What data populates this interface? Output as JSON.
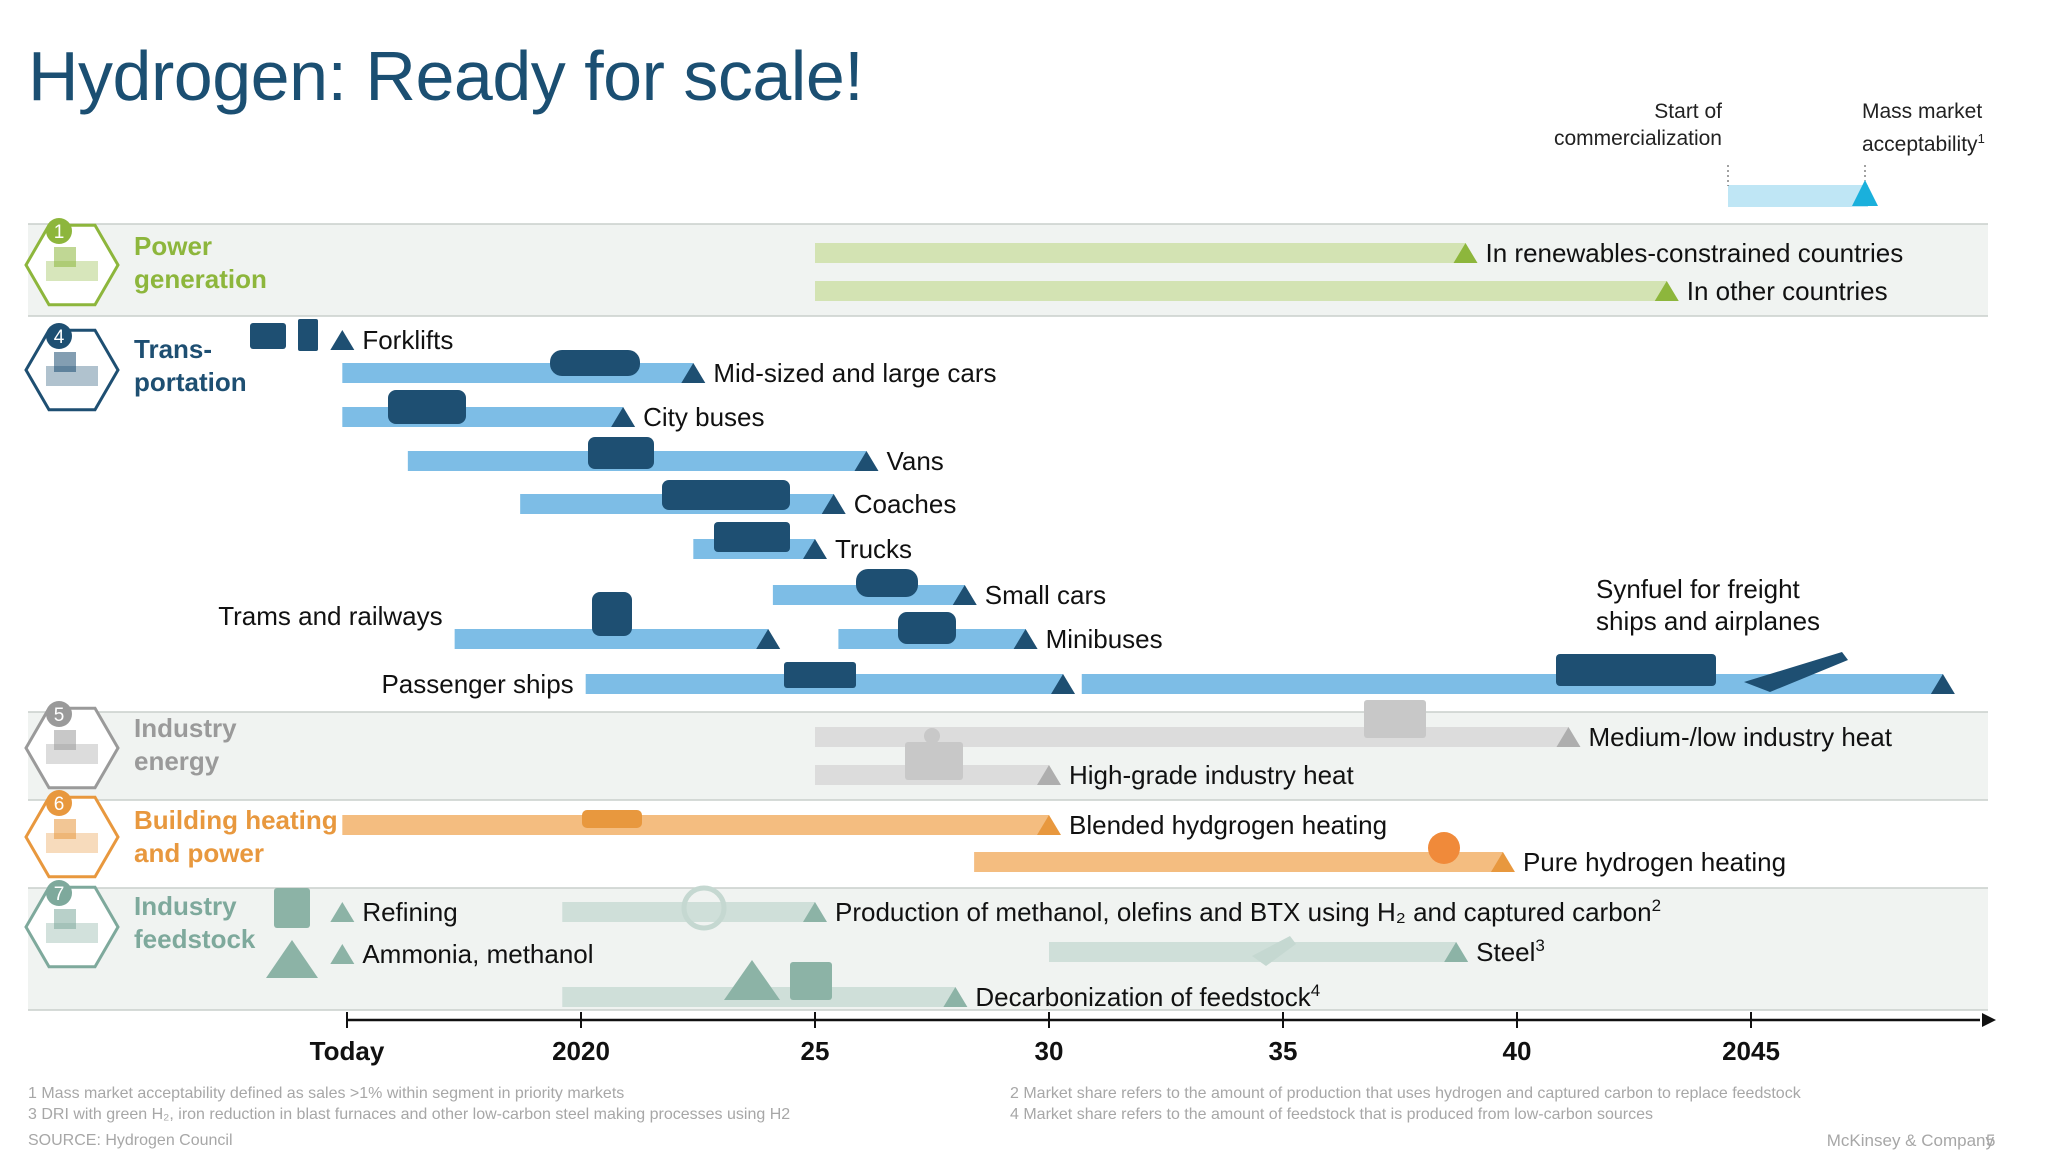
{
  "title": "Hydrogen: Ready for scale!",
  "legend": {
    "start_label": "Start of commercialization",
    "mass_label": "Mass market acceptability",
    "mass_sup": "1",
    "bar_color": "#bfe6f5",
    "marker_color": "#1ab0dc"
  },
  "footnotes": {
    "f1": "1 Mass market acceptability defined as sales >1% within segment in priority markets",
    "f3": "3 DRI with green H₂, iron reduction in blast furnaces and other low-carbon steel making processes using H2",
    "source": "SOURCE: Hydrogen Council",
    "f2": "2 Market share refers to the amount of production that uses hydrogen and captured carbon to replace feedstock",
    "f4": "4 Market share refers to the amount of feedstock that is produced from low-carbon sources",
    "brand": "McKinsey & Company",
    "page": "5"
  },
  "chart_data": {
    "type": "gantt",
    "x_axis": {
      "ticks": [
        {
          "value": 2015,
          "label": "Today"
        },
        {
          "value": 2020,
          "label": "2020"
        },
        {
          "value": 2025,
          "label": "25"
        },
        {
          "value": 2030,
          "label": "30"
        },
        {
          "value": 2035,
          "label": "35"
        },
        {
          "value": 2040,
          "label": "40"
        },
        {
          "value": 2045,
          "label": "2045"
        }
      ],
      "range": [
        2015,
        2049.5
      ]
    },
    "segments": [
      {
        "key": "power",
        "number": "1",
        "label": "Power generation",
        "color": "#8db63c",
        "band": 1
      },
      {
        "key": "transport",
        "number": "4",
        "label": "Trans-portation",
        "color": "#1e4f72",
        "band": 0
      },
      {
        "key": "energy",
        "number": "5",
        "label": "Industry energy",
        "color": "#9a9a9a",
        "band": 1
      },
      {
        "key": "building",
        "number": "6",
        "label": "Building heating and power",
        "color": "#e8983e",
        "band": 0
      },
      {
        "key": "feedstock",
        "number": "7",
        "label": "Industry feedstock",
        "color": "#7ea99c",
        "band": 1
      }
    ],
    "bars": [
      {
        "segment": "power",
        "label": "In renewables-constrained countries",
        "start": 2025,
        "end": 2038.9,
        "sup": ""
      },
      {
        "segment": "power",
        "label": "In other countries",
        "start": 2025,
        "end": 2043.2,
        "sup": ""
      },
      {
        "segment": "transport",
        "label": "Forklifts",
        "start": null,
        "end": 2014.9,
        "sup": ""
      },
      {
        "segment": "transport",
        "label": "Mid-sized and large cars",
        "start": 2014.9,
        "end": 2022.4,
        "sup": ""
      },
      {
        "segment": "transport",
        "label": "City buses",
        "start": 2014.9,
        "end": 2020.9,
        "sup": ""
      },
      {
        "segment": "transport",
        "label": "Vans",
        "start": 2016.3,
        "end": 2026.1,
        "sup": ""
      },
      {
        "segment": "transport",
        "label": "Coaches",
        "start": 2018.7,
        "end": 2025.4,
        "sup": ""
      },
      {
        "segment": "transport",
        "label": "Trucks",
        "start": 2022.4,
        "end": 2025,
        "sup": ""
      },
      {
        "segment": "transport",
        "label": "Small cars",
        "start": 2024.1,
        "end": 2028.2,
        "sup": ""
      },
      {
        "segment": "transport",
        "label": "Trams and railways",
        "start": 2017.3,
        "end": 2024,
        "sup": ""
      },
      {
        "segment": "transport",
        "label": "Minibuses",
        "start": 2025.5,
        "end": 2029.5,
        "sup": ""
      },
      {
        "segment": "transport",
        "label": "Passenger ships",
        "start": 2020.1,
        "end": 2030.3,
        "sup": ""
      },
      {
        "segment": "transport",
        "label": "Synfuel for freight ships and airplanes",
        "start": 2030.7,
        "end": 2049.1,
        "sup": ""
      },
      {
        "segment": "energy",
        "label": "Medium-/low industry heat",
        "start": 2025,
        "end": 2041.1,
        "sup": ""
      },
      {
        "segment": "energy",
        "label": "High-grade industry heat",
        "start": 2025,
        "end": 2030,
        "sup": ""
      },
      {
        "segment": "building",
        "label": "Blended hydgrogen heating",
        "start": 2014.9,
        "end": 2030,
        "sup": ""
      },
      {
        "segment": "building",
        "label": "Pure hydrogen heating",
        "start": 2028.4,
        "end": 2039.7,
        "sup": ""
      },
      {
        "segment": "feedstock",
        "label": "Refining",
        "start": null,
        "end": 2014.9,
        "sup": ""
      },
      {
        "segment": "feedstock",
        "label": "Production of methanol, olefins and BTX using H₂ and captured carbon",
        "start": 2019.6,
        "end": 2025,
        "sup": "2"
      },
      {
        "segment": "feedstock",
        "label": "Ammonia, methanol",
        "start": null,
        "end": 2014.9,
        "sup": ""
      },
      {
        "segment": "feedstock",
        "label": "Steel",
        "start": 2030,
        "end": 2038.7,
        "sup": "3"
      },
      {
        "segment": "feedstock",
        "label": "Decarbonization of feedstock",
        "start": 2019.6,
        "end": 2028,
        "sup": "4"
      }
    ],
    "colors": {
      "power_bar": "#d3e3b3",
      "power_marker": "#8db63c",
      "transport_bar": "#7dbde6",
      "transport_marker": "#1e4f72",
      "energy_bar": "#dcdcdc",
      "energy_marker": "#aeaeae",
      "building_bar": "#f4bd80",
      "building_marker": "#e8983e",
      "feedstock_bar": "#cfdfd9",
      "feedstock_marker": "#8cb3a6",
      "band": "#f0f3f1"
    }
  }
}
